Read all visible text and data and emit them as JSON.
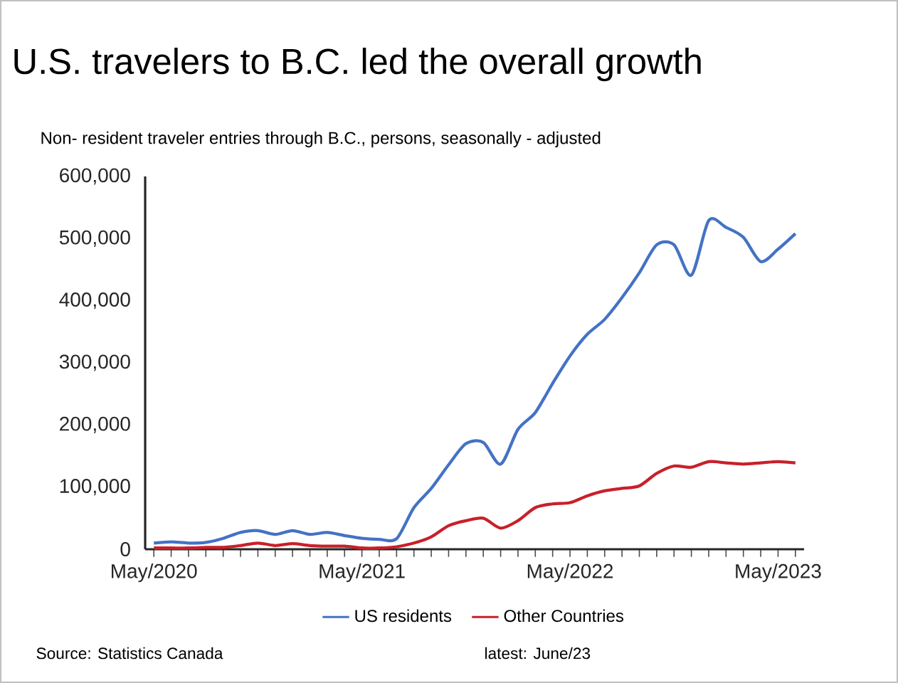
{
  "chart_data": {
    "type": "line",
    "title": "U.S. travelers to B.C. led the overall growth",
    "subtitle": "Non- resident traveler entries through B.C., persons, seasonally - adjusted",
    "annotations": [
      "Source: Statistics Canada",
      "latest: June/23"
    ],
    "categories": [
      "May/2020",
      null,
      null,
      null,
      null,
      null,
      null,
      null,
      null,
      null,
      null,
      null,
      "May/2021",
      null,
      null,
      null,
      null,
      null,
      null,
      null,
      null,
      null,
      null,
      null,
      "May/2022",
      null,
      null,
      null,
      null,
      null,
      null,
      null,
      null,
      null,
      null,
      null,
      "May/2023",
      null
    ],
    "series": [
      {
        "name": "US residents",
        "color": "#4472c4",
        "values": [
          10000,
          12000,
          10000,
          11000,
          17500,
          27000,
          30000,
          24000,
          30000,
          24000,
          27000,
          22000,
          17500,
          16000,
          17000,
          67000,
          98000,
          136000,
          170000,
          172000,
          137000,
          193000,
          220000,
          267000,
          311000,
          346000,
          370000,
          405000,
          445000,
          490000,
          490000,
          441000,
          529000,
          518000,
          502000,
          463000,
          483000,
          508000
        ]
      },
      {
        "name": "Other Countries",
        "color": "#c8202a",
        "values": [
          2000,
          2000,
          2000,
          3000,
          3000,
          6000,
          10000,
          6000,
          9000,
          6000,
          5000,
          5000,
          2000,
          2000,
          4000,
          10000,
          20000,
          38000,
          46000,
          50000,
          34000,
          46000,
          67000,
          73000,
          75000,
          86000,
          94000,
          98000,
          102000,
          122000,
          134000,
          132000,
          141000,
          139000,
          137000,
          139000,
          141000,
          139000
        ]
      }
    ],
    "ylim": [
      0,
      600000
    ],
    "yticks": [
      {
        "value": 0,
        "label": "0"
      },
      {
        "value": 100000,
        "label": "100,000"
      },
      {
        "value": 200000,
        "label": "200,000"
      },
      {
        "value": 300000,
        "label": "300,000"
      },
      {
        "value": 400000,
        "label": "400,000"
      },
      {
        "value": 500000,
        "label": "500,000"
      },
      {
        "value": 600000,
        "label": "600,000"
      }
    ],
    "legend": "bottom"
  }
}
